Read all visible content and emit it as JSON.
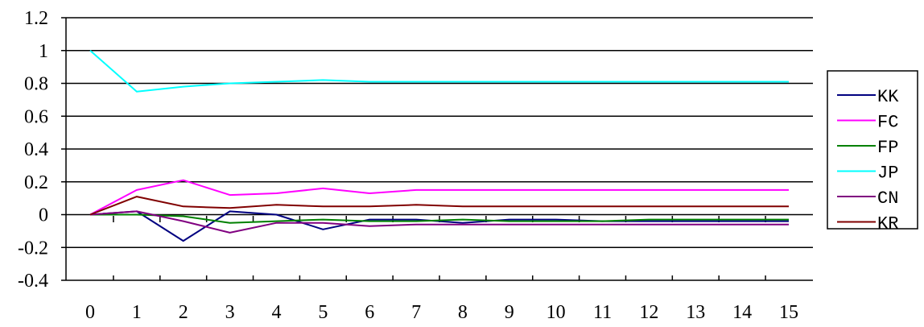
{
  "chart_data": {
    "type": "line",
    "categories": [
      "0",
      "1",
      "2",
      "3",
      "4",
      "5",
      "6",
      "7",
      "8",
      "9",
      "10",
      "11",
      "12",
      "13",
      "14",
      "15"
    ],
    "x": [
      0,
      1,
      2,
      3,
      4,
      5,
      6,
      7,
      8,
      9,
      10,
      11,
      12,
      13,
      14,
      15
    ],
    "ylim": [
      -0.4,
      1.2
    ],
    "yticks": [
      1.2,
      1,
      0.8,
      0.6,
      0.4,
      0.2,
      0,
      -0.2,
      -0.4
    ],
    "ytick_labels": [
      "1.2",
      "1",
      "0.8",
      "0.6",
      "0.4",
      "0.2",
      "0",
      "-0.2",
      "-0.4"
    ],
    "grid": "horizontal",
    "legend": "right",
    "series": [
      {
        "name": "KK",
        "color": "#000080",
        "values": [
          0,
          0.02,
          -0.16,
          0.02,
          0,
          -0.09,
          -0.03,
          -0.03,
          -0.05,
          -0.03,
          -0.03,
          -0.04,
          -0.04,
          -0.04,
          -0.04,
          -0.04
        ]
      },
      {
        "name": "FC",
        "color": "#FF00FF",
        "values": [
          0,
          0.15,
          0.21,
          0.12,
          0.13,
          0.16,
          0.13,
          0.15,
          0.15,
          0.15,
          0.15,
          0.15,
          0.15,
          0.15,
          0.15,
          0.15
        ]
      },
      {
        "name": "FP",
        "color": "#008000",
        "values": [
          0,
          0,
          -0.01,
          -0.05,
          -0.04,
          -0.03,
          -0.04,
          -0.04,
          -0.03,
          -0.04,
          -0.04,
          -0.04,
          -0.03,
          -0.03,
          -0.03,
          -0.03
        ]
      },
      {
        "name": "JP",
        "color": "#00FFFF",
        "values": [
          1,
          0.75,
          0.78,
          0.8,
          0.81,
          0.82,
          0.81,
          0.81,
          0.81,
          0.81,
          0.81,
          0.81,
          0.81,
          0.81,
          0.81,
          0.81
        ]
      },
      {
        "name": "CN",
        "color": "#800080",
        "values": [
          0,
          0.02,
          -0.04,
          -0.11,
          -0.05,
          -0.05,
          -0.07,
          -0.06,
          -0.06,
          -0.06,
          -0.06,
          -0.06,
          -0.06,
          -0.06,
          -0.06,
          -0.06
        ]
      },
      {
        "name": "KR",
        "color": "#800000",
        "values": [
          0,
          0.11,
          0.05,
          0.04,
          0.06,
          0.05,
          0.05,
          0.06,
          0.05,
          0.05,
          0.05,
          0.05,
          0.05,
          0.05,
          0.05,
          0.05
        ]
      }
    ]
  }
}
